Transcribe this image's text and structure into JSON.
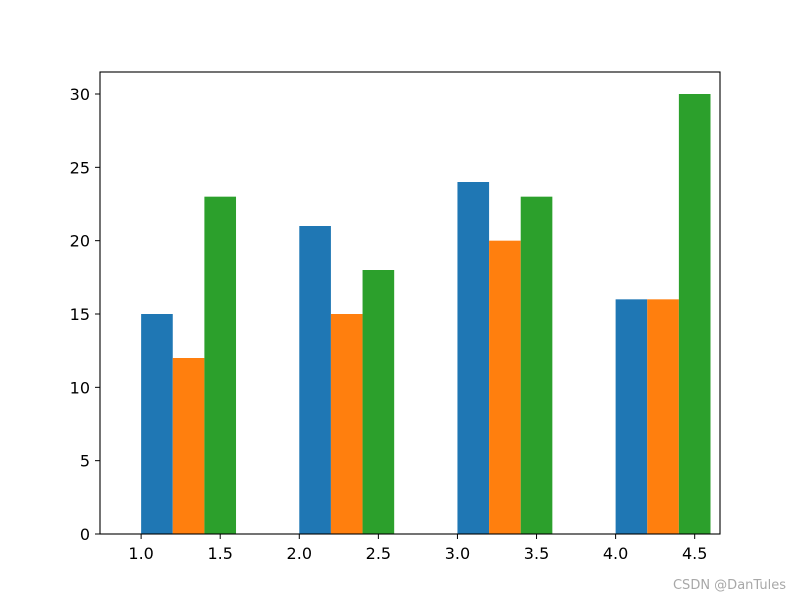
{
  "chart_data": {
    "type": "bar",
    "x": [
      1.0,
      2.0,
      3.0,
      4.0
    ],
    "bar_width": 0.2,
    "xlim": [
      0.74,
      4.66
    ],
    "ylim": [
      0,
      31.5
    ],
    "x_ticks": [
      1.0,
      1.5,
      2.0,
      2.5,
      3.0,
      3.5,
      4.0,
      4.5
    ],
    "y_ticks": [
      0,
      5,
      10,
      15,
      20,
      25,
      30
    ],
    "grid": false,
    "series": [
      {
        "color": "#1f77b4",
        "offset": 0.0,
        "values": [
          15,
          21,
          24,
          16
        ]
      },
      {
        "color": "#ff7f0e",
        "offset": 0.2,
        "values": [
          12,
          15,
          20,
          16
        ]
      },
      {
        "color": "#2ca02c",
        "offset": 0.4,
        "values": [
          23,
          18,
          23,
          30
        ]
      }
    ]
  },
  "watermark": "CSDN @DanTules"
}
